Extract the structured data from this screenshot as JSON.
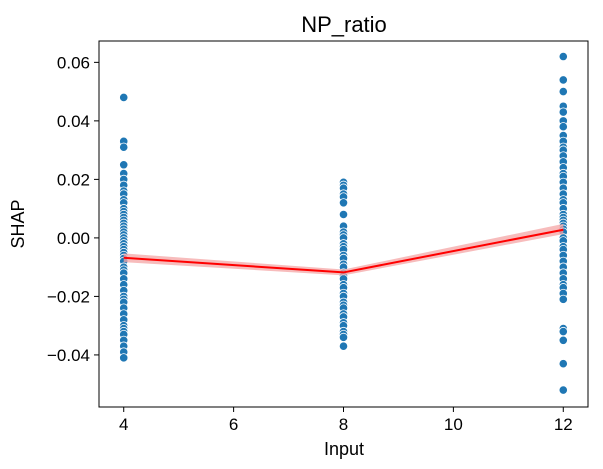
{
  "chart_data": {
    "type": "scatter",
    "title": "NP_ratio",
    "xlabel": "Input",
    "ylabel": "SHAP",
    "xlim": [
      3.55,
      12.45
    ],
    "ylim": [
      -0.0578,
      0.0673
    ],
    "xticks": [
      4,
      6,
      8,
      10,
      12
    ],
    "xtick_labels": [
      "4",
      "6",
      "8",
      "10",
      "12"
    ],
    "yticks": [
      -0.04,
      -0.02,
      0.0,
      0.02,
      0.04,
      0.06
    ],
    "ytick_labels": [
      "−0.04",
      "−0.02",
      "0.00",
      "0.02",
      "0.04",
      "0.06"
    ],
    "grid": false,
    "colors": {
      "points": "#1f77b4",
      "point_edge": "#ffffff",
      "trend": "#ff0000",
      "band": "#f4a6a6"
    },
    "series": [
      {
        "kind": "points",
        "x_value": 4,
        "y": [
          0.048,
          0.033,
          0.031,
          0.025,
          0.022,
          0.02,
          0.018,
          0.016,
          0.015,
          0.013,
          0.012,
          0.01,
          0.009,
          0.008,
          0.007,
          0.006,
          0.005,
          0.004,
          0.003,
          0.002,
          0.001,
          0.0,
          -0.001,
          -0.002,
          -0.003,
          -0.004,
          -0.005,
          -0.006,
          -0.007,
          -0.008,
          -0.01,
          -0.011,
          -0.012,
          -0.014,
          -0.016,
          -0.018,
          -0.02,
          -0.021,
          -0.022,
          -0.024,
          -0.026,
          -0.028,
          -0.03,
          -0.031,
          -0.032,
          -0.033,
          -0.035,
          -0.037,
          -0.039,
          -0.041
        ]
      },
      {
        "kind": "points",
        "x_value": 8,
        "y": [
          0.019,
          0.018,
          0.017,
          0.015,
          0.014,
          0.012,
          0.008,
          0.004,
          0.002,
          0.001,
          0.0,
          -0.002,
          -0.003,
          -0.004,
          -0.006,
          -0.007,
          -0.009,
          -0.01,
          -0.012,
          -0.013,
          -0.014,
          -0.016,
          -0.017,
          -0.019,
          -0.02,
          -0.022,
          -0.023,
          -0.024,
          -0.026,
          -0.027,
          -0.029,
          -0.03,
          -0.032,
          -0.033,
          -0.034,
          -0.037
        ]
      },
      {
        "kind": "points",
        "x_value": 12,
        "y": [
          0.062,
          0.054,
          0.05,
          0.045,
          0.043,
          0.04,
          0.038,
          0.035,
          0.033,
          0.031,
          0.03,
          0.028,
          0.026,
          0.024,
          0.022,
          0.021,
          0.019,
          0.017,
          0.015,
          0.013,
          0.012,
          0.01,
          0.008,
          0.007,
          0.006,
          0.005,
          0.004,
          0.003,
          0.002,
          0.0,
          -0.001,
          -0.003,
          -0.004,
          -0.006,
          -0.008,
          -0.01,
          -0.012,
          -0.014,
          -0.016,
          -0.017,
          -0.019,
          -0.021,
          -0.031,
          -0.032,
          -0.035,
          -0.043,
          -0.052
        ]
      }
    ],
    "trend_line": {
      "x": [
        4,
        8,
        12
      ],
      "y": [
        -0.0068,
        -0.0118,
        0.0028
      ],
      "band_lower": [
        -0.0083,
        -0.0128,
        0.0013
      ],
      "band_upper": [
        -0.0053,
        -0.0108,
        0.0048
      ]
    }
  }
}
